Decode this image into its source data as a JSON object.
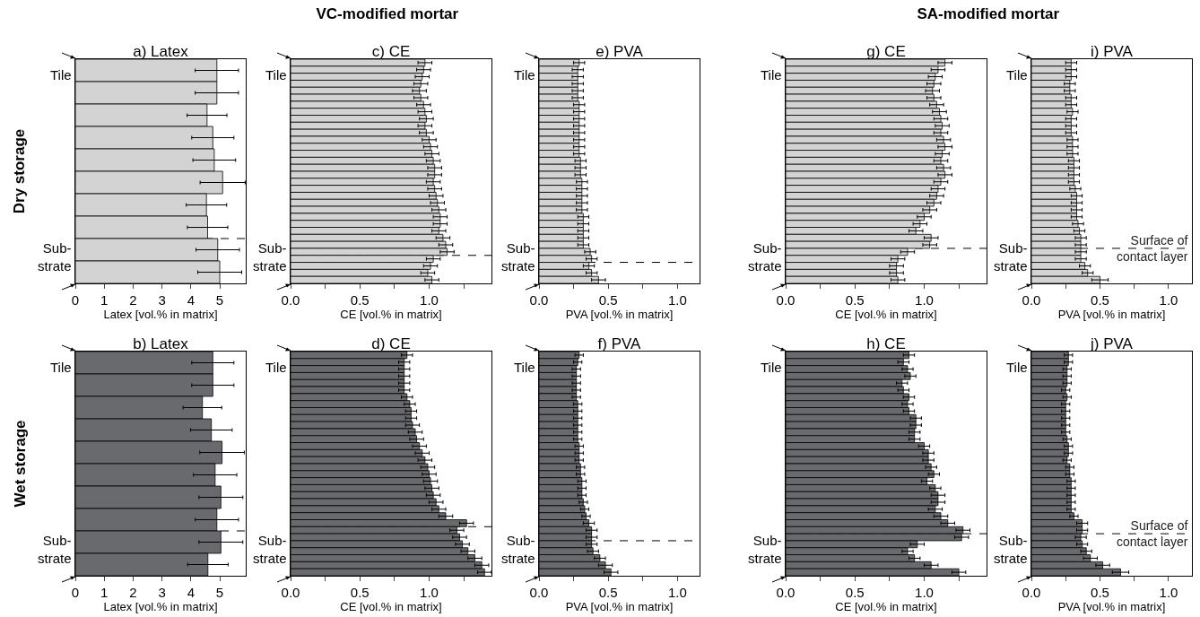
{
  "chart_data": [
    {
      "type": "bar",
      "orientation": "horizontal",
      "title": "a) Latex",
      "xlabel": "Latex [vol.% in matrix]",
      "color": "#d3d3d3",
      "tick_labels": "x",
      "xlim": [
        0,
        5.9
      ],
      "xticks": [
        0,
        1,
        2,
        3,
        4,
        5
      ],
      "categories": [
        null,
        null,
        null,
        null,
        null,
        null,
        null,
        null,
        null,
        null
      ],
      "values": [
        4.9,
        4.9,
        4.56,
        4.76,
        4.81,
        5.1,
        4.54,
        4.58,
        4.93,
        5.0
      ],
      "errors": [
        0.75,
        0.75,
        0.69,
        0.73,
        0.74,
        0.78,
        0.7,
        0.7,
        0.75,
        0.76
      ],
      "annotations": [
        "Tile",
        "Sub-\nstrate",
        "Dry storage"
      ]
    },
    {
      "type": "bar",
      "orientation": "horizontal",
      "title": "c) CE",
      "xlabel": "CE [vol.% in matrix]",
      "color": "#d3d3d3",
      "tick_labels": "x",
      "xlim": [
        0,
        1.45
      ],
      "xticks": [
        {
          "value": 0,
          "label": "0.0"
        },
        {
          "value": 0.25,
          "label": null
        },
        {
          "value": 0.5,
          "label": "0.5"
        },
        {
          "value": 0.75,
          "label": null
        },
        {
          "value": 1,
          "label": "1.0"
        },
        {
          "value": 1.25,
          "label": null
        }
      ],
      "categories": [
        null,
        null,
        null,
        null,
        null,
        null,
        null,
        null,
        null,
        null,
        null,
        null,
        null,
        null,
        null,
        null,
        null,
        null,
        null,
        null,
        null,
        null,
        null,
        null,
        null,
        null,
        null,
        null,
        null,
        null,
        null,
        null
      ],
      "values": [
        0.97,
        0.96,
        0.95,
        0.94,
        0.93,
        0.94,
        0.96,
        0.97,
        0.98,
        0.97,
        0.98,
        1.0,
        1.01,
        1.02,
        1.03,
        1.04,
        1.04,
        1.03,
        1.04,
        1.05,
        1.06,
        1.07,
        1.08,
        1.08,
        1.07,
        1.1,
        1.12,
        1.13,
        1.03,
        1.01,
        0.99,
        1.02
      ],
      "errors": [
        0.05,
        0.05,
        0.05,
        0.05,
        0.05,
        0.05,
        0.05,
        0.05,
        0.05,
        0.05,
        0.05,
        0.05,
        0.05,
        0.05,
        0.05,
        0.05,
        0.05,
        0.05,
        0.05,
        0.05,
        0.05,
        0.05,
        0.05,
        0.05,
        0.05,
        0.05,
        0.05,
        0.05,
        0.05,
        0.05,
        0.05,
        0.05
      ],
      "annotations": [
        "Tile",
        "Sub-\nstrate",
        "VC-modified mortar"
      ]
    },
    {
      "type": "bar",
      "orientation": "horizontal",
      "title": "e) PVA",
      "xlabel": "PVA [vol.% in matrix]",
      "color": "#d3d3d3",
      "tick_labels": "x",
      "xlim": [
        0,
        1.16
      ],
      "xticks": [
        {
          "value": 0,
          "label": "0.0"
        },
        {
          "value": 0.25,
          "label": null
        },
        {
          "value": 0.5,
          "label": "0.5"
        },
        {
          "value": 0.75,
          "label": null
        },
        {
          "value": 1,
          "label": "1.0"
        }
      ],
      "categories": [
        null,
        null,
        null,
        null,
        null,
        null,
        null,
        null,
        null,
        null,
        null,
        null,
        null,
        null,
        null,
        null,
        null,
        null,
        null,
        null,
        null,
        null,
        null,
        null,
        null,
        null,
        null,
        null,
        null,
        null,
        null,
        null
      ],
      "values": [
        0.29,
        0.28,
        0.28,
        0.28,
        0.28,
        0.28,
        0.29,
        0.29,
        0.29,
        0.29,
        0.29,
        0.29,
        0.29,
        0.29,
        0.3,
        0.3,
        0.3,
        0.31,
        0.31,
        0.31,
        0.31,
        0.31,
        0.32,
        0.32,
        0.32,
        0.32,
        0.32,
        0.37,
        0.38,
        0.36,
        0.38,
        0.43
      ],
      "errors": [
        0.04,
        0.04,
        0.04,
        0.04,
        0.04,
        0.04,
        0.04,
        0.04,
        0.04,
        0.04,
        0.04,
        0.04,
        0.04,
        0.04,
        0.04,
        0.04,
        0.04,
        0.04,
        0.04,
        0.04,
        0.04,
        0.04,
        0.04,
        0.04,
        0.04,
        0.04,
        0.04,
        0.04,
        0.04,
        0.04,
        0.04,
        0.05
      ],
      "annotations": [
        "Tile",
        "Sub-\nstrate"
      ]
    },
    {
      "type": "bar",
      "orientation": "horizontal",
      "title": "g) CE",
      "xlabel": "CE [vol.% in matrix]",
      "color": "#d3d3d3",
      "tick_labels": "x",
      "xlim": [
        0,
        1.45
      ],
      "xticks": [
        {
          "value": 0,
          "label": "0.0"
        },
        {
          "value": 0.25,
          "label": null
        },
        {
          "value": 0.5,
          "label": "0.5"
        },
        {
          "value": 0.75,
          "label": null
        },
        {
          "value": 1,
          "label": "1.0"
        },
        {
          "value": 1.25,
          "label": null
        }
      ],
      "categories": [
        null,
        null,
        null,
        null,
        null,
        null,
        null,
        null,
        null,
        null,
        null,
        null,
        null,
        null,
        null,
        null,
        null,
        null,
        null,
        null,
        null,
        null,
        null,
        null,
        null,
        null,
        null,
        null,
        null,
        null,
        null,
        null
      ],
      "values": [
        1.15,
        1.1,
        1.08,
        1.07,
        1.06,
        1.07,
        1.09,
        1.11,
        1.12,
        1.13,
        1.12,
        1.14,
        1.15,
        1.13,
        1.12,
        1.14,
        1.15,
        1.12,
        1.1,
        1.09,
        1.07,
        1.04,
        1.0,
        0.97,
        0.94,
        1.05,
        1.04,
        0.88,
        0.81,
        0.8,
        0.8,
        0.81
      ],
      "errors": [
        0.05,
        0.05,
        0.05,
        0.05,
        0.05,
        0.05,
        0.05,
        0.05,
        0.05,
        0.05,
        0.05,
        0.05,
        0.05,
        0.05,
        0.05,
        0.05,
        0.05,
        0.05,
        0.05,
        0.05,
        0.05,
        0.05,
        0.05,
        0.05,
        0.05,
        0.05,
        0.05,
        0.05,
        0.05,
        0.05,
        0.05,
        0.05
      ],
      "annotations": [
        "Tile",
        "Sub-\nstrate",
        "SA-modified mortar"
      ]
    },
    {
      "type": "bar",
      "orientation": "horizontal",
      "title": "i) PVA",
      "xlabel": "PVA [vol.% in matrix]",
      "color": "#d3d3d3",
      "tick_labels": "x",
      "xlim": [
        0,
        1.17
      ],
      "xticks": [
        {
          "value": 0,
          "label": "0.0"
        },
        {
          "value": 0.25,
          "label": null
        },
        {
          "value": 0.5,
          "label": "0.5"
        },
        {
          "value": 0.75,
          "label": null
        },
        {
          "value": 1,
          "label": "1.0"
        }
      ],
      "categories": [
        null,
        null,
        null,
        null,
        null,
        null,
        null,
        null,
        null,
        null,
        null,
        null,
        null,
        null,
        null,
        null,
        null,
        null,
        null,
        null,
        null,
        null,
        null,
        null,
        null,
        null,
        null,
        null,
        null,
        null,
        null,
        null
      ],
      "values": [
        0.29,
        0.29,
        0.29,
        0.28,
        0.28,
        0.29,
        0.29,
        0.3,
        0.29,
        0.29,
        0.29,
        0.3,
        0.3,
        0.3,
        0.31,
        0.31,
        0.31,
        0.31,
        0.32,
        0.33,
        0.33,
        0.33,
        0.33,
        0.34,
        0.35,
        0.36,
        0.36,
        0.36,
        0.36,
        0.39,
        0.41,
        0.5
      ],
      "errors": [
        0.04,
        0.04,
        0.04,
        0.04,
        0.04,
        0.04,
        0.04,
        0.04,
        0.04,
        0.04,
        0.04,
        0.04,
        0.04,
        0.04,
        0.04,
        0.04,
        0.04,
        0.04,
        0.04,
        0.04,
        0.04,
        0.04,
        0.04,
        0.04,
        0.04,
        0.04,
        0.04,
        0.04,
        0.04,
        0.04,
        0.04,
        0.06
      ],
      "annotations": [
        "Tile",
        "Sub-\nstrate",
        "Surface of\ncontact layer"
      ]
    },
    {
      "type": "bar",
      "orientation": "horizontal",
      "title": "b) Latex",
      "xlabel": "Latex [vol.% in matrix]",
      "color": "#696a6e",
      "tick_labels": "x",
      "xlim": [
        0,
        5.9
      ],
      "xticks": [
        0,
        1,
        2,
        3,
        4,
        5
      ],
      "categories": [
        null,
        null,
        null,
        null,
        null,
        null,
        null,
        null,
        null,
        null
      ],
      "values": [
        4.76,
        4.76,
        4.4,
        4.71,
        5.08,
        4.84,
        5.04,
        4.9,
        5.04,
        4.59
      ],
      "errors": [
        0.73,
        0.73,
        0.67,
        0.72,
        0.77,
        0.75,
        0.76,
        0.75,
        0.76,
        0.7
      ],
      "annotations": [
        "Tile",
        "Sub-\nstrate",
        "Wet storage"
      ]
    },
    {
      "type": "bar",
      "orientation": "horizontal",
      "title": "d) CE",
      "xlabel": "CE [vol.% in matrix]",
      "color": "#696a6e",
      "tick_labels": "x",
      "xlim": [
        0,
        1.45
      ],
      "xticks": [
        {
          "value": 0,
          "label": "0.0"
        },
        {
          "value": 0.25,
          "label": null
        },
        {
          "value": 0.5,
          "label": "0.5"
        },
        {
          "value": 0.75,
          "label": null
        },
        {
          "value": 1,
          "label": "1.0"
        },
        {
          "value": 1.25,
          "label": null
        }
      ],
      "categories": [
        null,
        null,
        null,
        null,
        null,
        null,
        null,
        null,
        null,
        null,
        null,
        null,
        null,
        null,
        null,
        null,
        null,
        null,
        null,
        null,
        null,
        null,
        null,
        null,
        null,
        null,
        null,
        null,
        null,
        null,
        null,
        null
      ],
      "values": [
        0.84,
        0.82,
        0.82,
        0.82,
        0.82,
        0.82,
        0.84,
        0.86,
        0.87,
        0.87,
        0.88,
        0.9,
        0.91,
        0.93,
        0.95,
        0.97,
        0.99,
        1.0,
        1.01,
        1.02,
        1.03,
        1.05,
        1.07,
        1.12,
        1.27,
        1.2,
        1.22,
        1.24,
        1.28,
        1.33,
        1.38,
        1.4
      ],
      "errors": [
        0.04,
        0.04,
        0.04,
        0.04,
        0.04,
        0.04,
        0.04,
        0.04,
        0.04,
        0.04,
        0.05,
        0.05,
        0.05,
        0.05,
        0.05,
        0.05,
        0.05,
        0.05,
        0.05,
        0.05,
        0.05,
        0.05,
        0.05,
        0.05,
        0.05,
        0.05,
        0.05,
        0.05,
        0.05,
        0.05,
        0.05,
        0.05
      ],
      "annotations": [
        "Tile",
        "Sub-\nstrate"
      ]
    },
    {
      "type": "bar",
      "orientation": "horizontal",
      "title": "f) PVA",
      "xlabel": "PVA [vol.% in matrix]",
      "color": "#696a6e",
      "tick_labels": "x",
      "xlim": [
        0,
        1.16
      ],
      "xticks": [
        {
          "value": 0,
          "label": "0.0"
        },
        {
          "value": 0.25,
          "label": null
        },
        {
          "value": 0.5,
          "label": "0.5"
        },
        {
          "value": 0.75,
          "label": null
        },
        {
          "value": 1,
          "label": "1.0"
        }
      ],
      "categories": [
        null,
        null,
        null,
        null,
        null,
        null,
        null,
        null,
        null,
        null,
        null,
        null,
        null,
        null,
        null,
        null,
        null,
        null,
        null,
        null,
        null,
        null,
        null,
        null,
        null,
        null,
        null,
        null,
        null,
        null,
        null,
        null
      ],
      "values": [
        0.29,
        0.28,
        0.27,
        0.27,
        0.27,
        0.27,
        0.27,
        0.28,
        0.28,
        0.28,
        0.28,
        0.28,
        0.28,
        0.29,
        0.29,
        0.29,
        0.3,
        0.3,
        0.31,
        0.31,
        0.31,
        0.32,
        0.33,
        0.34,
        0.36,
        0.38,
        0.38,
        0.38,
        0.39,
        0.44,
        0.48,
        0.52
      ],
      "errors": [
        0.03,
        0.03,
        0.03,
        0.03,
        0.03,
        0.03,
        0.03,
        0.03,
        0.03,
        0.03,
        0.03,
        0.03,
        0.03,
        0.03,
        0.03,
        0.03,
        0.03,
        0.03,
        0.03,
        0.03,
        0.03,
        0.03,
        0.03,
        0.03,
        0.04,
        0.04,
        0.04,
        0.04,
        0.04,
        0.04,
        0.05,
        0.05
      ],
      "annotations": [
        "Tile",
        "Sub-\nstrate"
      ]
    },
    {
      "type": "bar",
      "orientation": "horizontal",
      "title": "h) CE",
      "xlabel": "CE [vol.% in matrix]",
      "color": "#696a6e",
      "tick_labels": "x",
      "xlim": [
        0,
        1.45
      ],
      "xticks": [
        {
          "value": 0,
          "label": "0.0"
        },
        {
          "value": 0.25,
          "label": null
        },
        {
          "value": 0.5,
          "label": "0.5"
        },
        {
          "value": 0.75,
          "label": null
        },
        {
          "value": 1,
          "label": "1.0"
        },
        {
          "value": 1.25,
          "label": null
        }
      ],
      "categories": [
        null,
        null,
        null,
        null,
        null,
        null,
        null,
        null,
        null,
        null,
        null,
        null,
        null,
        null,
        null,
        null,
        null,
        null,
        null,
        null,
        null,
        null,
        null,
        null,
        null,
        null,
        null,
        null,
        null,
        null,
        null,
        null
      ],
      "values": [
        0.89,
        0.85,
        0.88,
        0.9,
        0.84,
        0.85,
        0.89,
        0.88,
        0.89,
        0.94,
        0.94,
        0.93,
        0.93,
        1.0,
        1.03,
        1.03,
        1.05,
        1.07,
        1.02,
        1.08,
        1.1,
        1.1,
        1.08,
        1.12,
        1.17,
        1.28,
        1.27,
        0.95,
        0.88,
        0.93,
        1.05,
        1.25
      ],
      "errors": [
        0.04,
        0.04,
        0.04,
        0.04,
        0.04,
        0.04,
        0.04,
        0.04,
        0.04,
        0.04,
        0.04,
        0.04,
        0.04,
        0.04,
        0.04,
        0.04,
        0.04,
        0.04,
        0.04,
        0.04,
        0.05,
        0.05,
        0.05,
        0.05,
        0.05,
        0.05,
        0.05,
        0.05,
        0.04,
        0.04,
        0.05,
        0.05
      ],
      "annotations": [
        "Tile",
        "Sub-\nstrate"
      ]
    },
    {
      "type": "bar",
      "orientation": "horizontal",
      "title": "j) PVA",
      "xlabel": "PVA [vol.% in matrix]",
      "color": "#696a6e",
      "tick_labels": "x",
      "xlim": [
        0,
        1.17
      ],
      "xticks": [
        {
          "value": 0,
          "label": "0.0"
        },
        {
          "value": 0.25,
          "label": null
        },
        {
          "value": 0.5,
          "label": "0.5"
        },
        {
          "value": 0.75,
          "label": null
        },
        {
          "value": 1,
          "label": "1.0"
        }
      ],
      "categories": [
        null,
        null,
        null,
        null,
        null,
        null,
        null,
        null,
        null,
        null,
        null,
        null,
        null,
        null,
        null,
        null,
        null,
        null,
        null,
        null,
        null,
        null,
        null,
        null,
        null,
        null,
        null,
        null,
        null,
        null,
        null,
        null
      ],
      "values": [
        0.27,
        0.27,
        0.26,
        0.26,
        0.26,
        0.25,
        0.26,
        0.25,
        0.25,
        0.25,
        0.25,
        0.25,
        0.26,
        0.27,
        0.27,
        0.26,
        0.28,
        0.28,
        0.29,
        0.29,
        0.29,
        0.29,
        0.29,
        0.31,
        0.37,
        0.37,
        0.36,
        0.37,
        0.4,
        0.43,
        0.52,
        0.65
      ],
      "errors": [
        0.03,
        0.03,
        0.03,
        0.03,
        0.03,
        0.03,
        0.03,
        0.03,
        0.03,
        0.03,
        0.03,
        0.03,
        0.03,
        0.03,
        0.03,
        0.03,
        0.03,
        0.03,
        0.03,
        0.03,
        0.03,
        0.03,
        0.03,
        0.03,
        0.04,
        0.04,
        0.04,
        0.04,
        0.04,
        0.05,
        0.05,
        0.06
      ],
      "annotations": [
        "Tile",
        "Sub-\nstrate",
        "Surface of\ncontact layer"
      ]
    }
  ]
}
